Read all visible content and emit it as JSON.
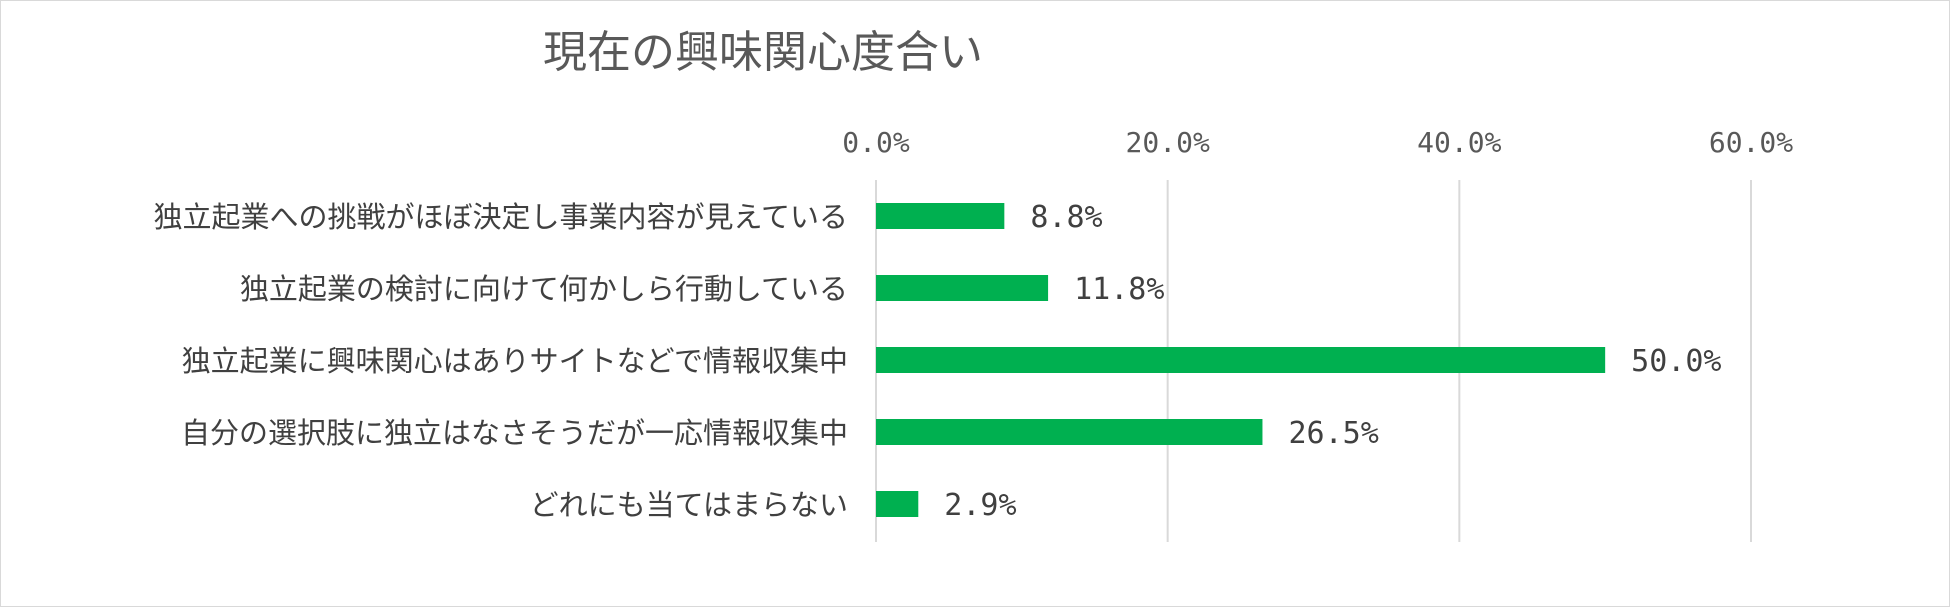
{
  "chart_data": {
    "type": "bar",
    "orientation": "horizontal",
    "title": "現在の興味関心度合い",
    "categories": [
      "独立起業への挑戦がほぼ決定し事業内容が見えている",
      "独立起業の検討に向けて何かしら行動している",
      "独立起業に興味関心はありサイトなどで情報収集中",
      "自分の選択肢に独立はなさそうだが一応情報収集中",
      "どれにも当てはまらない"
    ],
    "values": [
      8.8,
      11.8,
      50.0,
      26.5,
      2.9
    ],
    "data_labels": [
      "8.8%",
      "11.8%",
      "50.0%",
      "26.5%",
      "2.9%"
    ],
    "x_ticks": [
      0,
      20,
      40,
      60
    ],
    "x_tick_labels": [
      "0.0%",
      "20.0%",
      "40.0%",
      "60.0%"
    ],
    "xlim": [
      0,
      60
    ],
    "x_axis_position": "top",
    "grid": true,
    "legend": "none",
    "bar_color": "#00b050",
    "grid_color": "#d9d9d9"
  }
}
